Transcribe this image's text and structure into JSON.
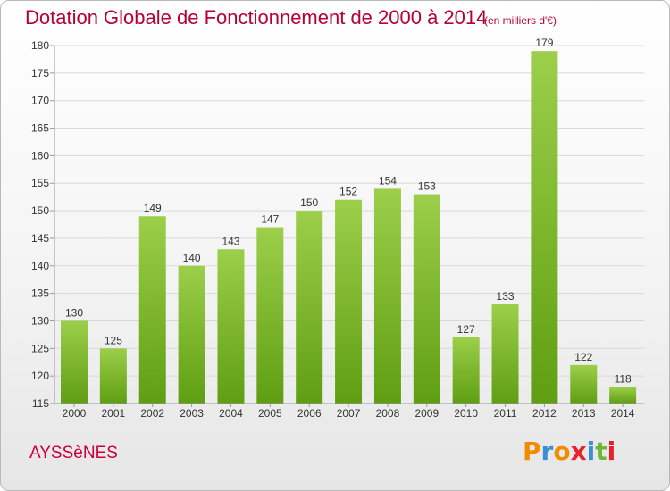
{
  "header": {
    "title": "Dotation Globale de Fonctionnement de 2000 à 2014",
    "subtitle": "(en milliers d'€)"
  },
  "commune": "AYSSèNES",
  "logo": {
    "letters": [
      "P",
      "r",
      "o",
      "x",
      "i",
      "t",
      "i"
    ],
    "colors": [
      "#f08c00",
      "#3a8fd8",
      "#f08c00",
      "#e8202a",
      "#3a8fd8",
      "#6db83a",
      "#e8202a"
    ]
  },
  "chart_data": {
    "type": "bar",
    "categories": [
      "2000",
      "2001",
      "2002",
      "2003",
      "2004",
      "2005",
      "2006",
      "2007",
      "2008",
      "2009",
      "2010",
      "2011",
      "2012",
      "2013",
      "2014"
    ],
    "values": [
      130,
      125,
      149,
      140,
      143,
      147,
      150,
      152,
      154,
      153,
      127,
      133,
      179,
      122,
      118
    ],
    "data_labels": [
      "130",
      "125",
      "149",
      "140",
      "143",
      "147",
      "150",
      "152",
      "154",
      "153",
      "127",
      "133",
      "179",
      "122",
      "118"
    ],
    "ylim": [
      115,
      180
    ],
    "yticks": [
      "115",
      "120",
      "125",
      "130",
      "135",
      "140",
      "145",
      "150",
      "155",
      "160",
      "165",
      "170",
      "175",
      "180"
    ],
    "grid": true,
    "colors": {
      "bar_top": "#9ccf4a",
      "bar_bottom": "#5f9e12",
      "grid": "#d9d9d9",
      "axis": "#999999"
    }
  }
}
